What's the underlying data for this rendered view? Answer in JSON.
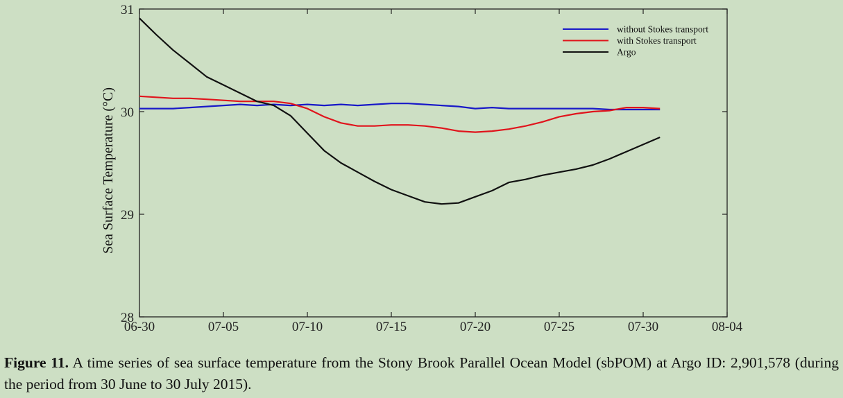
{
  "chart_data": {
    "type": "line",
    "title": "",
    "xlabel": "",
    "ylabel": "Sea Surface Temperature (°C)",
    "xlim": [
      "06-30",
      "08-04"
    ],
    "ylim": [
      28,
      31
    ],
    "grid": false,
    "legend_position": "top-right",
    "x_ticks": [
      "06-30",
      "07-05",
      "07-10",
      "07-15",
      "07-20",
      "07-25",
      "07-30",
      "08-04"
    ],
    "y_ticks": [
      28,
      29,
      30,
      31
    ],
    "x": [
      "06-30",
      "07-01",
      "07-02",
      "07-03",
      "07-04",
      "07-05",
      "07-06",
      "07-07",
      "07-08",
      "07-09",
      "07-10",
      "07-11",
      "07-12",
      "07-13",
      "07-14",
      "07-15",
      "07-16",
      "07-17",
      "07-18",
      "07-19",
      "07-20",
      "07-21",
      "07-22",
      "07-23",
      "07-24",
      "07-25",
      "07-26",
      "07-27",
      "07-28",
      "07-29",
      "07-30",
      "07-31"
    ],
    "series": [
      {
        "name": "without Stokes transport",
        "color": "#1818c8",
        "values": [
          30.03,
          30.03,
          30.03,
          30.04,
          30.05,
          30.06,
          30.07,
          30.06,
          30.07,
          30.06,
          30.07,
          30.06,
          30.07,
          30.06,
          30.07,
          30.08,
          30.08,
          30.07,
          30.06,
          30.05,
          30.03,
          30.04,
          30.03,
          30.03,
          30.03,
          30.03,
          30.03,
          30.03,
          30.02,
          30.02,
          30.02,
          30.02
        ]
      },
      {
        "name": "with Stokes transport",
        "color": "#e0141c",
        "values": [
          30.15,
          30.14,
          30.13,
          30.13,
          30.12,
          30.11,
          30.1,
          30.1,
          30.1,
          30.08,
          30.03,
          29.95,
          29.89,
          29.86,
          29.86,
          29.87,
          29.87,
          29.86,
          29.84,
          29.81,
          29.8,
          29.81,
          29.83,
          29.86,
          29.9,
          29.95,
          29.98,
          30.0,
          30.01,
          30.04,
          30.04,
          30.03
        ]
      },
      {
        "name": "Argo",
        "color": "#111111",
        "values": [
          30.91,
          30.75,
          30.6,
          30.47,
          30.34,
          30.26,
          30.18,
          30.1,
          30.06,
          29.96,
          29.79,
          29.62,
          29.5,
          29.41,
          29.32,
          29.24,
          29.18,
          29.12,
          29.1,
          29.11,
          29.17,
          29.23,
          29.31,
          29.34,
          29.38,
          29.41,
          29.44,
          29.48,
          29.54,
          29.61,
          29.68,
          29.75
        ]
      }
    ]
  },
  "caption": {
    "label": "Figure 11.",
    "text": "A time series of sea surface temperature from the Stony Brook Parallel Ocean Model (sbPOM) at Argo ID: 2,901,578 (during the period from 30 June to 30 July 2015)."
  }
}
